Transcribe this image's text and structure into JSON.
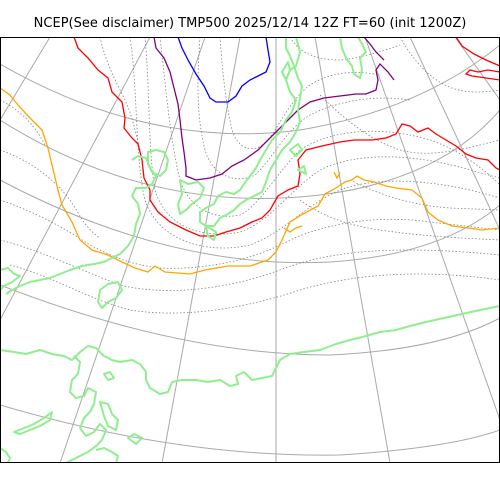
{
  "title": "NCEP(See disclaimer) TMP500 2025/12/14 12Z FT=60 (init 1200Z)",
  "colors": {
    "background": "#ffffff",
    "frame": "#000000",
    "graticule": "#a9a9a9",
    "coastline": "#90ee90",
    "isotherm_dotted": "#808080",
    "isotherm_orange": "#ffa500",
    "isotherm_red": "#ff0000",
    "isotherm_purple": "#800080",
    "isotherm_blue": "#0000ff"
  }
}
